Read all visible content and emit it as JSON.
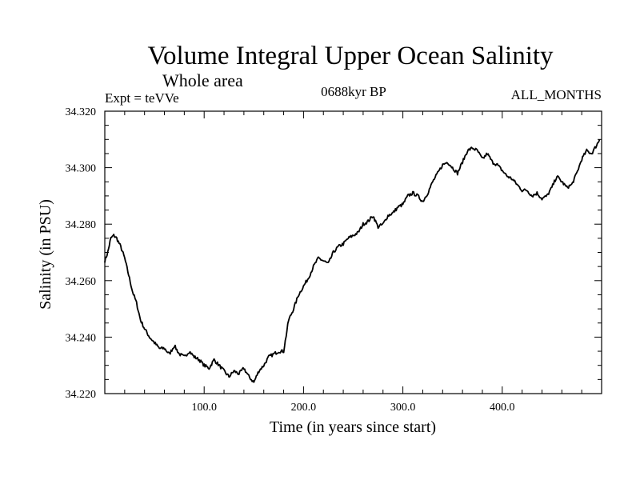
{
  "header": {
    "title": "Volume Integral Upper Ocean Salinity",
    "subtitle": "Whole area",
    "experiment": "Expt = teVVe",
    "period": "0688kyr BP",
    "months": "ALL_MONTHS"
  },
  "chart_data": {
    "type": "line",
    "title": "Volume Integral Upper Ocean Salinity",
    "subtitle": "Whole area",
    "xlabel": "Time (in years since start)",
    "ylabel": "Salinity (in PSU)",
    "xlim": [
      0,
      500
    ],
    "ylim": [
      34.22,
      34.32
    ],
    "x_ticks": [
      100,
      200,
      300,
      400
    ],
    "x_tick_labels": [
      "100.0",
      "200.0",
      "300.0",
      "400.0"
    ],
    "y_ticks": [
      34.22,
      34.24,
      34.26,
      34.28,
      34.3,
      34.32
    ],
    "y_tick_labels": [
      "34.220",
      "34.240",
      "34.260",
      "34.280",
      "34.300",
      "34.320"
    ],
    "grid": false,
    "series": [
      {
        "color": "#000000",
        "x": [
          0,
          3,
          6,
          9,
          12,
          16,
          20,
          24,
          28,
          32,
          36,
          40,
          45,
          50,
          55,
          60,
          65,
          70,
          75,
          80,
          85,
          90,
          95,
          100,
          105,
          110,
          115,
          120,
          125,
          130,
          135,
          140,
          145,
          150,
          155,
          160,
          165,
          170,
          175,
          180,
          185,
          190,
          195,
          200,
          205,
          210,
          215,
          220,
          225,
          230,
          235,
          240,
          245,
          250,
          255,
          260,
          265,
          270,
          275,
          280,
          285,
          290,
          295,
          300,
          305,
          310,
          315,
          320,
          325,
          330,
          335,
          340,
          345,
          350,
          355,
          360,
          365,
          370,
          375,
          380,
          385,
          390,
          395,
          400,
          405,
          410,
          415,
          420,
          425,
          430,
          435,
          440,
          445,
          450,
          455,
          460,
          465,
          470,
          475,
          480,
          485,
          490,
          495,
          498
        ],
        "values": [
          34.267,
          34.27,
          34.275,
          34.276,
          34.275,
          34.272,
          34.268,
          34.262,
          34.256,
          34.252,
          34.246,
          34.243,
          34.24,
          34.238,
          34.236,
          34.236,
          34.234,
          34.237,
          34.234,
          34.233,
          34.235,
          34.233,
          34.232,
          34.23,
          34.229,
          34.232,
          34.23,
          34.228,
          34.226,
          34.228,
          34.227,
          34.229,
          34.226,
          34.224,
          34.228,
          34.23,
          34.233,
          34.234,
          34.235,
          34.235,
          34.246,
          34.25,
          34.255,
          34.258,
          34.261,
          34.265,
          34.268,
          34.267,
          34.266,
          34.27,
          34.272,
          34.273,
          34.275,
          34.276,
          34.277,
          34.28,
          34.281,
          34.283,
          34.279,
          34.28,
          34.283,
          34.284,
          34.286,
          34.287,
          34.29,
          34.291,
          34.29,
          34.288,
          34.291,
          34.295,
          34.298,
          34.301,
          34.302,
          34.3,
          34.298,
          34.302,
          34.306,
          34.307,
          34.306,
          34.303,
          34.305,
          34.302,
          34.301,
          34.299,
          34.297,
          34.296,
          34.294,
          34.292,
          34.292,
          34.29,
          34.291,
          34.289,
          34.29,
          34.293,
          34.297,
          34.295,
          34.293,
          34.294,
          34.298,
          34.303,
          34.306,
          34.305,
          34.308,
          34.31
        ]
      }
    ]
  }
}
